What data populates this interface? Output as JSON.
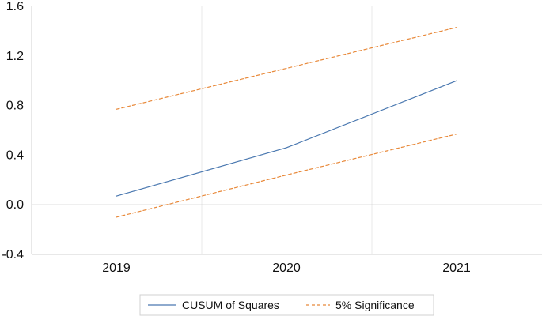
{
  "chart_data": {
    "type": "line",
    "title": "",
    "xlabel": "",
    "ylabel": "",
    "x": [
      "2019",
      "2020",
      "2021"
    ],
    "x_ticks": [
      "2019",
      "2020",
      "2021"
    ],
    "y_ticks": [
      "1.6",
      "1.2",
      "0.8",
      "0.4",
      "0.0",
      "-0.4"
    ],
    "ylim": [
      -0.4,
      1.6
    ],
    "grid": {
      "vertical": true,
      "horizontal": false
    },
    "legend_position": "bottom-center",
    "series": [
      {
        "name": "CUSUM of Squares",
        "values": [
          0.07,
          0.46,
          1.0
        ],
        "color": "#4A78B0",
        "line_style": "solid"
      },
      {
        "name": "5% Significance",
        "values": [
          0.77,
          1.1,
          1.43
        ],
        "color": "#E8893A",
        "line_style": "dashed"
      },
      {
        "name": "5% Significance",
        "values": [
          -0.1,
          0.24,
          0.57
        ],
        "color": "#E8893A",
        "line_style": "dashed",
        "legend_duplicate": true
      }
    ]
  },
  "legend": {
    "items": [
      {
        "label": "CUSUM of Squares",
        "series_index": 0
      },
      {
        "label": "5% Significance",
        "series_index": 1
      }
    ]
  }
}
